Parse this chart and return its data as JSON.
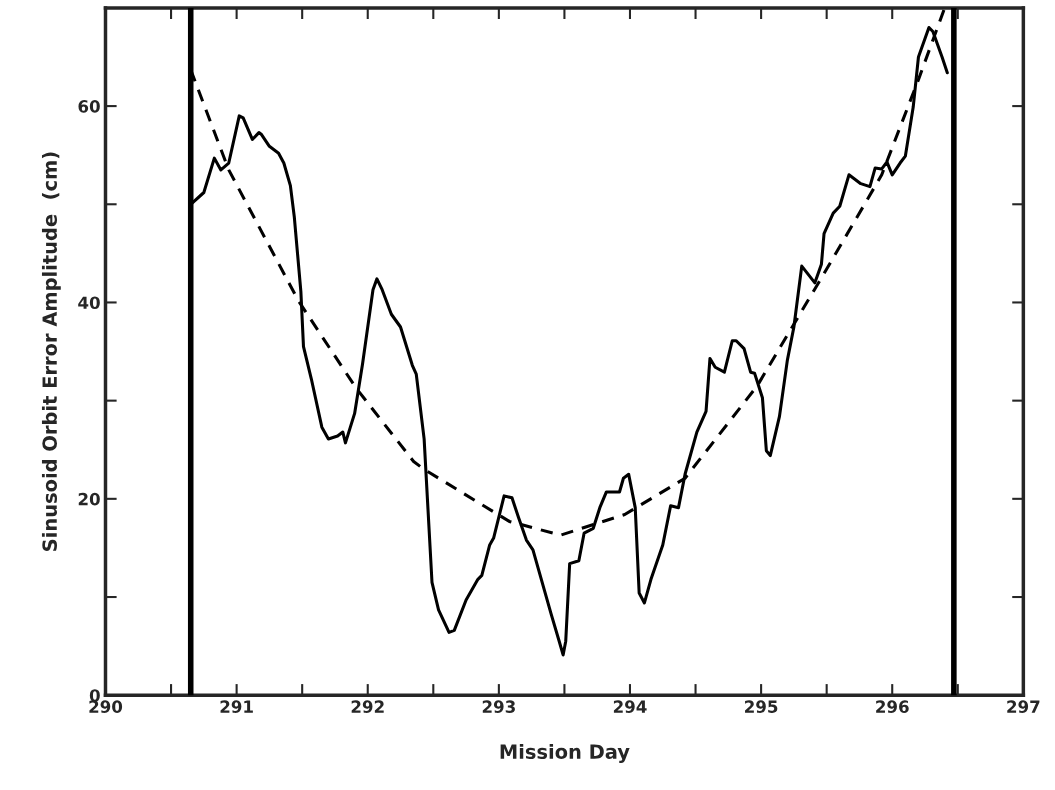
{
  "chart_data": {
    "type": "line",
    "xlabel": "Mission Day",
    "ylabel": "Sinusoid Orbit Error Amplitude  (cm)",
    "xlim": [
      290,
      297
    ],
    "ylim": [
      0,
      70
    ],
    "xticks": [
      290,
      {
        "value": 290.5,
        "label": null
      },
      291,
      {
        "value": 291.5,
        "label": null
      },
      292,
      {
        "value": 292.5,
        "label": null
      },
      293,
      {
        "value": 293.5,
        "label": null
      },
      294,
      {
        "value": 294.5,
        "label": null
      },
      295,
      {
        "value": 295.5,
        "label": null
      },
      296,
      {
        "value": 296.5,
        "label": null
      },
      297
    ],
    "yticks": [
      0,
      {
        "value": 10,
        "label": null
      },
      20,
      {
        "value": 30,
        "label": null
      },
      40,
      {
        "value": 50,
        "label": null
      },
      60
    ],
    "grid": false,
    "marker": "none",
    "ref_lines": [
      {
        "axis": "x",
        "value": 290.65,
        "color": "#000000"
      },
      {
        "axis": "x",
        "value": 296.47,
        "color": "#000000"
      }
    ],
    "series": [
      {
        "color": "#000000",
        "line_style": "solid",
        "x": [
          290.65,
          290.75,
          290.83,
          290.88,
          290.94,
          291.02,
          291.05,
          291.12,
          291.17,
          291.19,
          291.25,
          291.32,
          291.36,
          291.41,
          291.44,
          291.49,
          291.51,
          291.57,
          291.65,
          291.7,
          291.77,
          291.81,
          291.83,
          291.9,
          291.96,
          292.04,
          292.07,
          292.11,
          292.18,
          292.25,
          292.34,
          292.37,
          292.43,
          292.49,
          292.54,
          292.62,
          292.66,
          292.75,
          292.84,
          292.87,
          292.93,
          292.96,
          293.04,
          293.1,
          293.15,
          293.21,
          293.26,
          293.4,
          293.46,
          293.49,
          293.51,
          293.54,
          293.61,
          293.65,
          293.72,
          293.77,
          293.82,
          293.92,
          293.95,
          293.99,
          294.04,
          294.07,
          294.11,
          294.16,
          294.25,
          294.31,
          294.37,
          294.42,
          294.51,
          294.58,
          294.61,
          294.65,
          294.72,
          294.78,
          294.81,
          294.87,
          294.92,
          294.95,
          295.01,
          295.04,
          295.07,
          295.14,
          295.2,
          295.25,
          295.31,
          295.41,
          295.46,
          295.48,
          295.55,
          295.6,
          295.67,
          295.71,
          295.76,
          295.83,
          295.87,
          295.92,
          295.96,
          296.0,
          296.06,
          296.1,
          296.16,
          296.2,
          296.28,
          296.31,
          296.38,
          296.42
        ],
        "values": [
          50.0,
          51.2,
          54.7,
          53.5,
          54.2,
          59.0,
          58.8,
          56.6,
          57.3,
          57.1,
          55.9,
          55.2,
          54.2,
          51.9,
          48.7,
          41.1,
          35.5,
          32.2,
          27.3,
          26.1,
          26.4,
          26.8,
          25.7,
          28.7,
          33.7,
          41.3,
          42.4,
          41.3,
          38.8,
          37.5,
          33.6,
          32.7,
          26.1,
          11.5,
          8.7,
          6.4,
          6.6,
          9.7,
          11.8,
          12.2,
          15.3,
          16.0,
          20.3,
          20.1,
          18.1,
          15.8,
          14.8,
          8.2,
          5.5,
          4.1,
          5.5,
          13.4,
          13.7,
          16.5,
          17.0,
          19.1,
          20.7,
          20.7,
          22.1,
          22.5,
          19.1,
          10.4,
          9.4,
          11.8,
          15.3,
          19.3,
          19.1,
          22.5,
          26.8,
          28.9,
          34.3,
          33.4,
          32.9,
          36.1,
          36.1,
          35.3,
          32.9,
          32.8,
          30.3,
          24.9,
          24.4,
          28.4,
          34.1,
          37.5,
          43.7,
          42.0,
          43.9,
          47.0,
          49.1,
          49.8,
          53.0,
          52.6,
          52.1,
          51.8,
          53.7,
          53.6,
          54.3,
          53.0,
          54.2,
          54.9,
          59.9,
          65.0,
          68.0,
          67.6,
          65.0,
          63.4
        ]
      },
      {
        "color": "#000000",
        "line_style": "dashed",
        "x": [
          290.65,
          290.94,
          291.47,
          291.91,
          292.35,
          292.43,
          293.08,
          293.47,
          293.96,
          294.42,
          294.97,
          295.5,
          295.92,
          296.2,
          296.4
        ],
        "values": [
          63.7,
          53.5,
          40.2,
          31.3,
          23.8,
          23.0,
          17.7,
          16.3,
          18.4,
          22.1,
          31.5,
          43.4,
          53.0,
          62.7,
          70
        ]
      }
    ]
  }
}
